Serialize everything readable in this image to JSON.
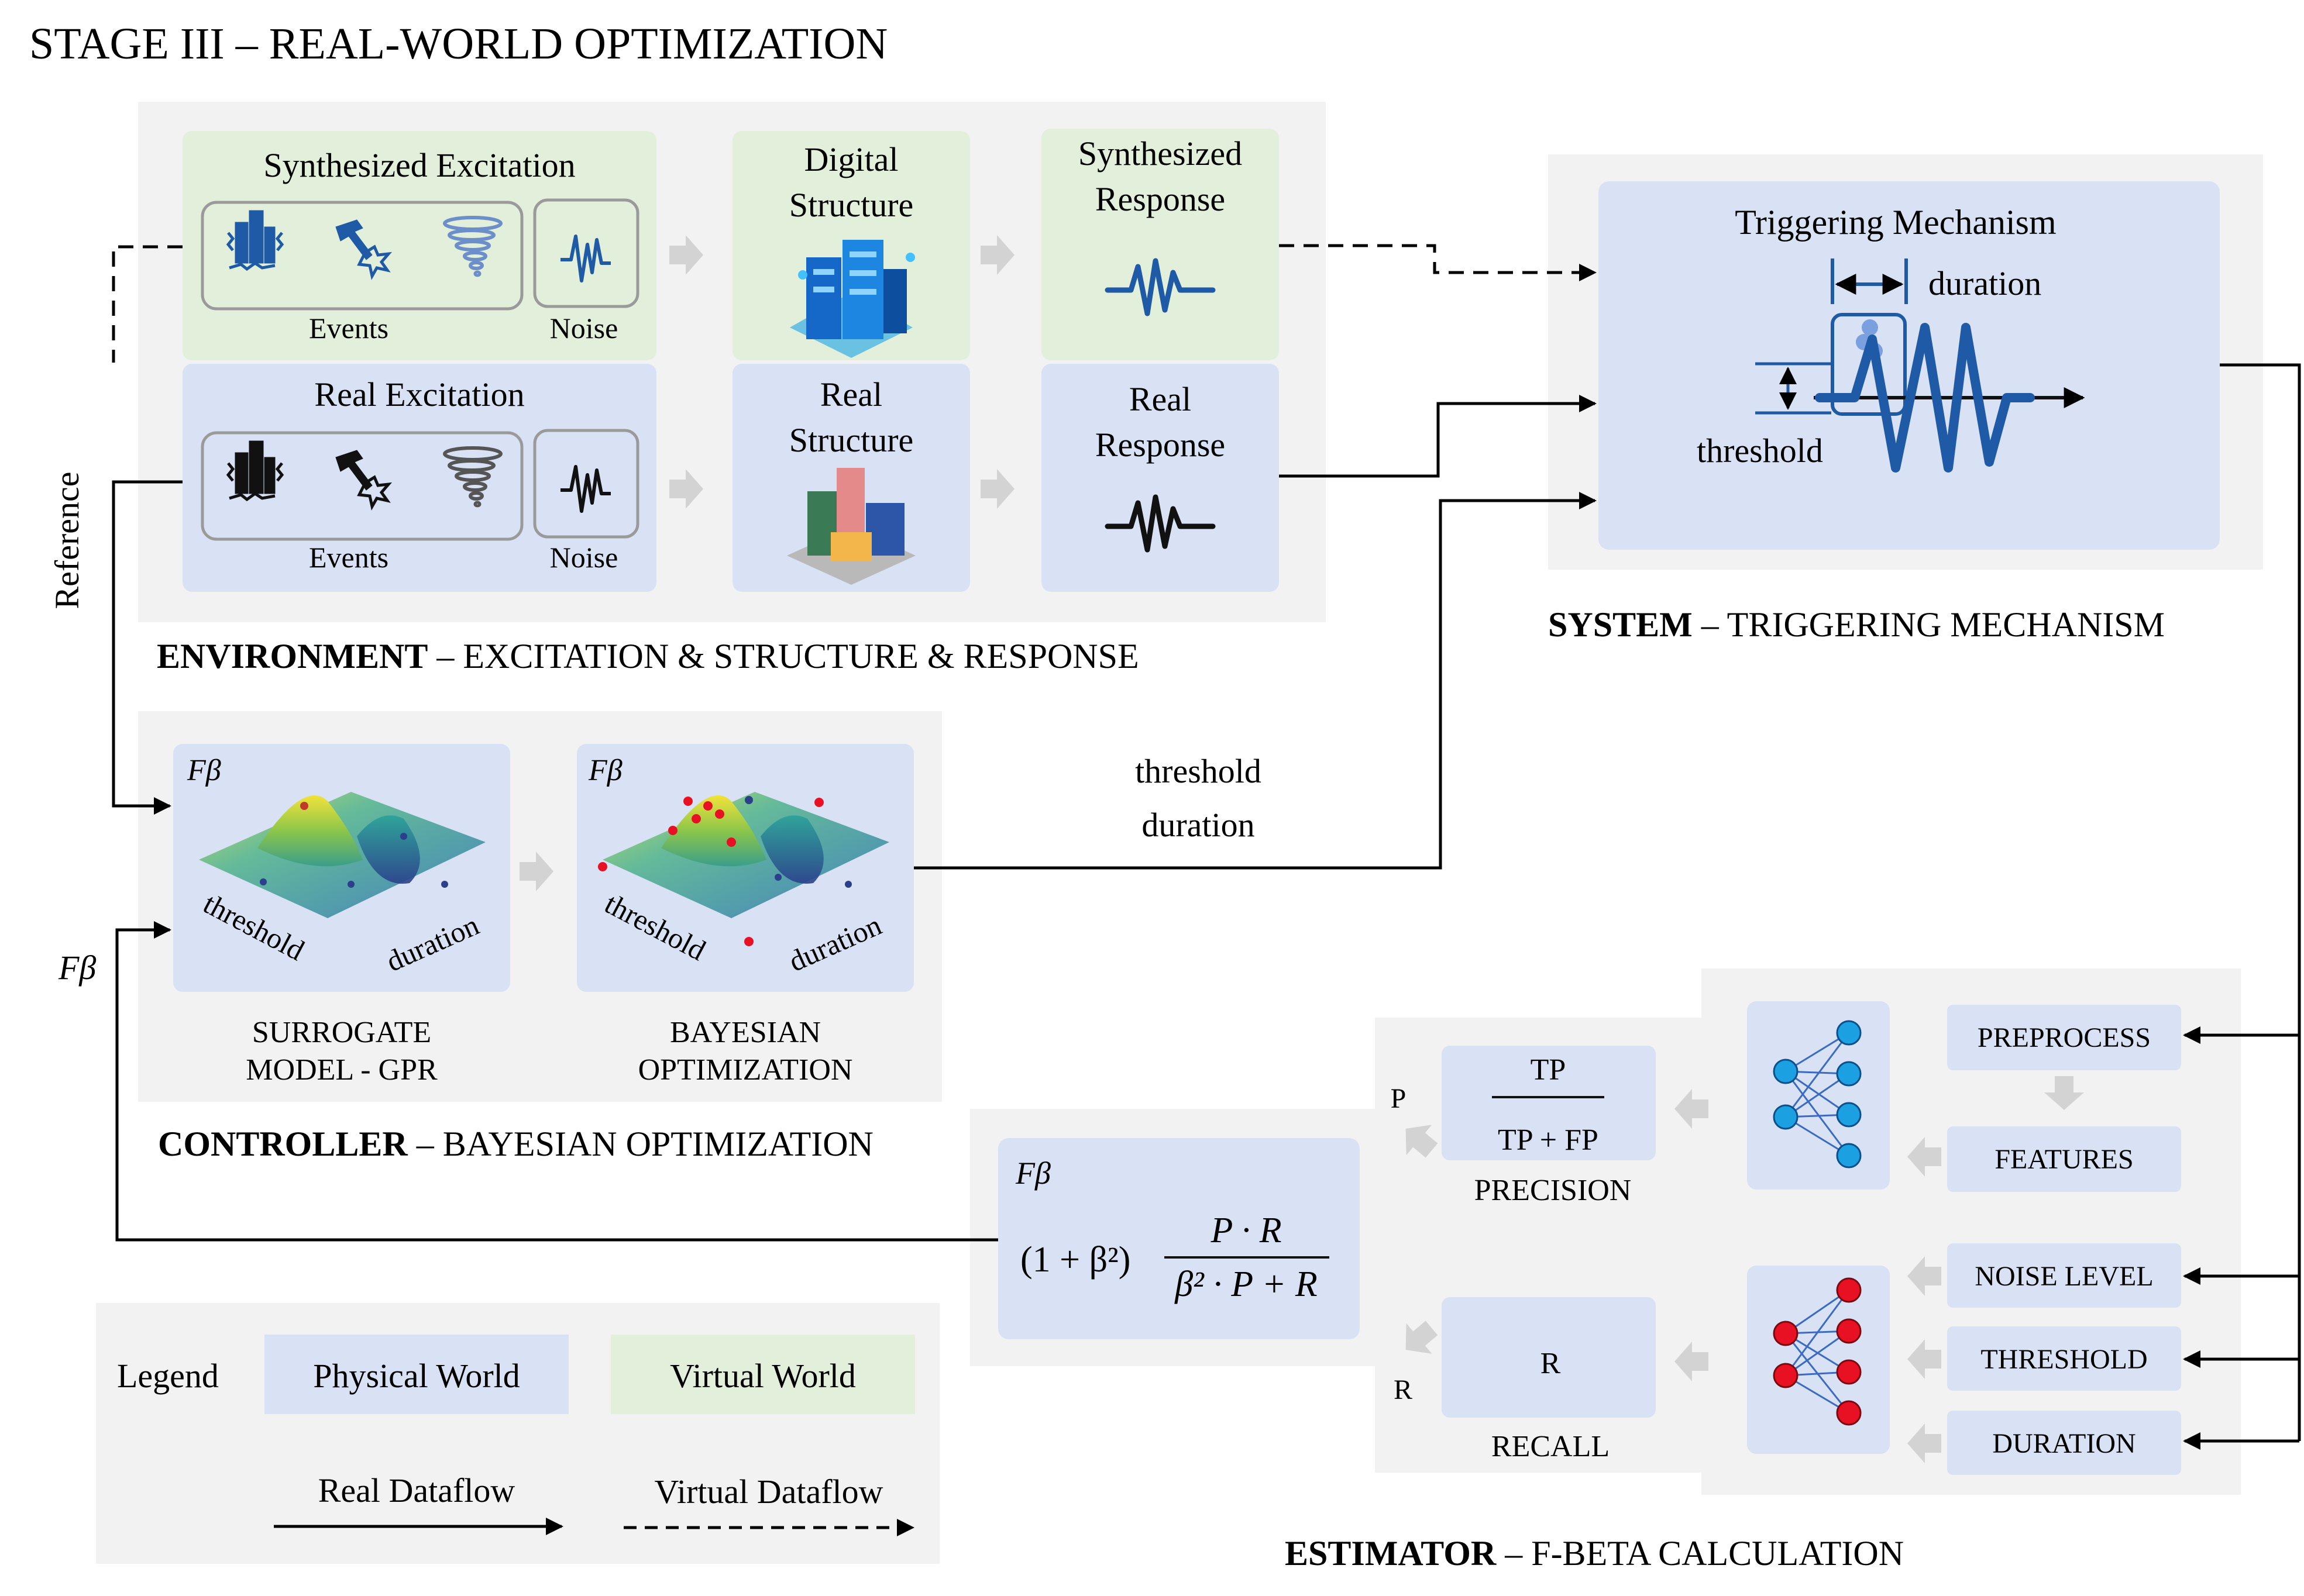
{
  "title": "STAGE III – REAL-WORLD OPTIMIZATION",
  "environment": {
    "caption_bold": "ENVIRONMENT",
    "caption_rest": " – EXCITATION & STRUCTURE & RESPONSE",
    "synth_excitation": "Synthesized Excitation",
    "real_excitation": "Real Excitation",
    "events": "Events",
    "noise": "Noise",
    "digital_structure": [
      "Digital",
      "Structure"
    ],
    "real_structure": [
      "Real",
      "Structure"
    ],
    "synth_response": [
      "Synthesized",
      "Response"
    ],
    "real_response": [
      "Real",
      "Response"
    ],
    "reference": "Reference"
  },
  "system": {
    "caption_bold": "SYSTEM",
    "caption_rest": " – TRIGGERING MECHANISM",
    "panel_title": "Triggering Mechanism",
    "duration": "duration",
    "threshold": "threshold"
  },
  "controller": {
    "caption_bold": "CONTROLLER",
    "caption_rest": " – BAYESIAN OPTIMIZATION",
    "fbeta": "Fβ",
    "axis_threshold": "threshold",
    "axis_duration": "duration",
    "surrogate": [
      "SURROGATE",
      "MODEL - GPR"
    ],
    "bayesian": [
      "BAYESIAN",
      "OPTIMIZATION"
    ],
    "out_threshold": "threshold",
    "out_duration": "duration",
    "feedback_label": "Fβ"
  },
  "estimator": {
    "caption_bold": "ESTIMATOR",
    "caption_rest": "  – F-BETA CALCULATION",
    "fbeta_label": "Fβ",
    "formula_prefix": "(1 + β²)",
    "formula_num": "P · R",
    "formula_den": "β² · P + R",
    "tp": "TP",
    "tp_fp": "TP + FP",
    "precision": "PRECISION",
    "r": "R",
    "recall": "RECALL",
    "p_label": "P",
    "r_label": "R",
    "preprocess": "PREPROCESS",
    "features": "FEATURES",
    "noise_level": "NOISE LEVEL",
    "threshold": "THRESHOLD",
    "duration": "DURATION"
  },
  "legend": {
    "title": "Legend",
    "physical": "Physical World",
    "virtual": "Virtual World",
    "real_flow": "Real Dataflow",
    "virtual_flow": "Virtual Dataflow"
  },
  "colors": {
    "physical": "#d9e1f4",
    "virtual": "#e2efda",
    "panel": "#f2f2f2",
    "accent": "#1f5aa6",
    "node_blue": "#1ba1e2",
    "node_red": "#e81123",
    "arrow_gray": "#d0d0d0"
  },
  "icons": [
    "building-quake-icon",
    "hammer-icon",
    "tornado-icon",
    "noise-signal-icon",
    "digital-building-icon",
    "real-building-icon",
    "response-signal-icon",
    "neural-net-icon",
    "surface-plot-icon"
  ]
}
